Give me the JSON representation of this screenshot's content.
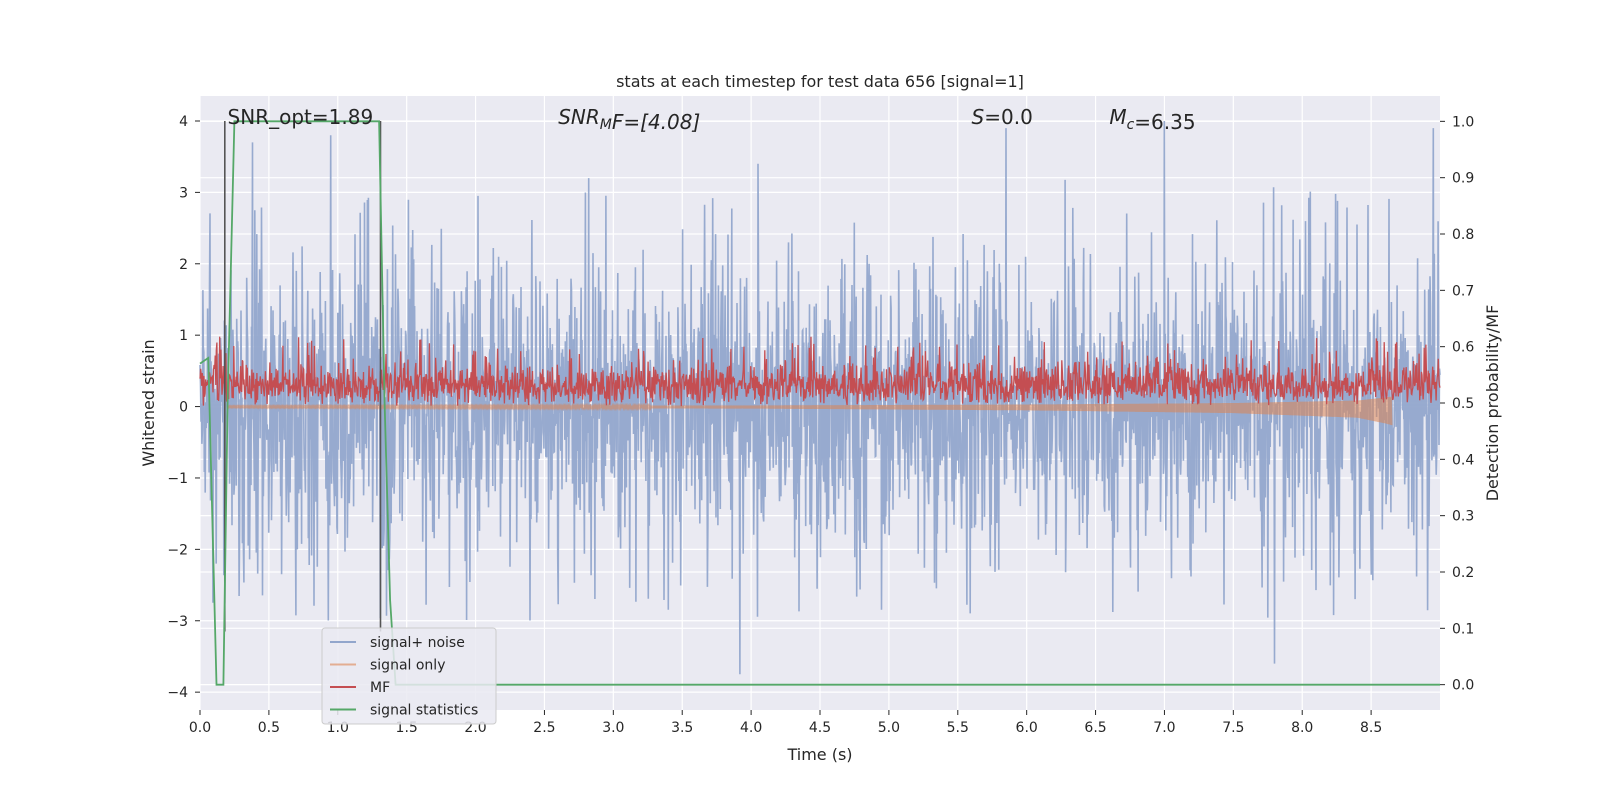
{
  "chart_data": {
    "type": "line",
    "title": "stats at each timestep for test data 656 [signal=1]",
    "xlabel": "Time (s)",
    "ylabel": "Whitened strain",
    "ylabel_right": "Detection probability/MF",
    "xlim": [
      0,
      9
    ],
    "ylim": [
      -4.25,
      4.35
    ],
    "ylim_right": [
      -0.045,
      1.045
    ],
    "x_ticks": [
      0.0,
      0.5,
      1.0,
      1.5,
      2.0,
      2.5,
      3.0,
      3.5,
      4.0,
      4.5,
      5.0,
      5.5,
      6.0,
      6.5,
      7.0,
      7.5,
      8.0,
      8.5
    ],
    "x_tick_labels": [
      "0.0",
      "0.5",
      "1.0",
      "1.5",
      "2.0",
      "2.5",
      "3.0",
      "3.5",
      "4.0",
      "4.5",
      "5.0",
      "5.5",
      "6.0",
      "6.5",
      "7.0",
      "7.5",
      "8.0",
      "8.5"
    ],
    "y_ticks": [
      4,
      3,
      2,
      1,
      0,
      -1,
      -2,
      -3,
      -4
    ],
    "y_tick_labels": [
      "4",
      "3",
      "2",
      "1",
      "0",
      "−1",
      "−2",
      "−3",
      "−4"
    ],
    "y_right_ticks": [
      1.0,
      0.9,
      0.8,
      0.7,
      0.6,
      0.5,
      0.4,
      0.3,
      0.2,
      0.1,
      0.0
    ],
    "y_right_tick_labels": [
      "1.0",
      "0.9",
      "0.8",
      "0.7",
      "0.6",
      "0.5",
      "0.4",
      "0.3",
      "0.2",
      "0.1",
      "0.0"
    ],
    "grid": true,
    "annotations": [
      {
        "parts": [
          {
            "t": "SNR_opt=1.89",
            "i": false
          }
        ],
        "x": 0.2
      },
      {
        "parts": [
          {
            "t": "SNR",
            "i": true
          },
          {
            "t": "M",
            "i": true,
            "sub": true
          },
          {
            "t": "F=[4.08]",
            "i": true
          }
        ],
        "x": 2.6
      },
      {
        "parts": [
          {
            "t": "S",
            "i": true
          },
          {
            "t": "=0.0",
            "i": false
          }
        ],
        "x": 5.6
      },
      {
        "parts": [
          {
            "t": "M",
            "i": true
          },
          {
            "t": "c",
            "i": true,
            "sub": true
          },
          {
            "t": "=6.35",
            "i": false
          }
        ],
        "x": 6.6
      }
    ],
    "legend": {
      "position": "lower-left",
      "entries": [
        "signal+ noise",
        "signal only",
        "MF",
        "signal statistics"
      ]
    },
    "series": [
      {
        "name": "signal+ noise",
        "axis": "left",
        "color": "#92a6cc",
        "style": "noise",
        "x_range": [
          0,
          9
        ],
        "typical_amplitude": 1.5,
        "peaks": [
          [
            0.38,
            3.7
          ],
          [
            0.95,
            3.8
          ],
          [
            2.82,
            3.2
          ],
          [
            3.92,
            -3.75
          ],
          [
            4.05,
            3.4
          ],
          [
            5.85,
            3.9
          ],
          [
            7.0,
            4.0
          ],
          [
            7.8,
            -3.6
          ],
          [
            8.95,
            3.9
          ]
        ]
      },
      {
        "name": "signal only",
        "axis": "left",
        "color": "#dd8452",
        "style": "chirp",
        "x": [
          0.2,
          4.0,
          6.0,
          7.5,
          8.4,
          8.6,
          8.65
        ],
        "envelope": [
          0.01,
          0.02,
          0.04,
          0.07,
          0.12,
          0.18,
          0.2
        ]
      },
      {
        "name": "MF",
        "axis": "left",
        "color": "#c44e52",
        "style": "noise-positive",
        "x_range": [
          0,
          9
        ],
        "typical_range": [
          0.0,
          0.8
        ],
        "max": 0.98
      },
      {
        "name": "signal statistics",
        "axis": "right",
        "color": "#55a868",
        "style": "line",
        "x": [
          0.0,
          0.06,
          0.12,
          0.17,
          0.2,
          0.25,
          1.3,
          1.34,
          1.38,
          1.42,
          1.5,
          9.0
        ],
        "y": [
          0.57,
          0.58,
          0.0,
          0.0,
          0.5,
          1.0,
          1.0,
          0.5,
          0.15,
          0.0,
          0.0,
          0.0
        ]
      }
    ],
    "vertical_markers": [
      0.18,
      1.31
    ]
  }
}
